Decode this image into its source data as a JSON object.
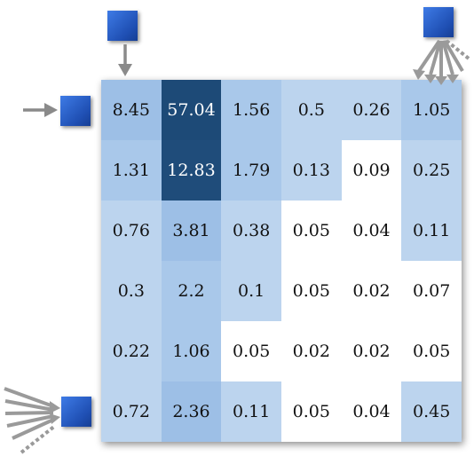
{
  "heatmap": {
    "rows": [
      [
        "8.45",
        "57.04",
        "1.56",
        "0.5",
        "0.26",
        "1.05"
      ],
      [
        "1.31",
        "12.83",
        "1.79",
        "0.13",
        "0.09",
        "0.25"
      ],
      [
        "0.76",
        "3.81",
        "0.38",
        "0.05",
        "0.04",
        "0.11"
      ],
      [
        "0.3",
        "2.2",
        "0.1",
        "0.05",
        "0.02",
        "0.07"
      ],
      [
        "0.22",
        "1.06",
        "0.05",
        "0.02",
        "0.02",
        "0.05"
      ],
      [
        "0.72",
        "2.36",
        "0.11",
        "0.05",
        "0.04",
        "0.45"
      ]
    ],
    "colors": {
      "darkest": "#1d4a77",
      "mid": "#9dbfe6",
      "light": "#bcd4ee",
      "none": "#ffffff"
    }
  },
  "markers": {
    "color": "#2a5fcc",
    "icons": [
      "square-marker-icon",
      "arrow-down-icon",
      "arrow-right-icon",
      "arrow-burst-icon"
    ]
  }
}
